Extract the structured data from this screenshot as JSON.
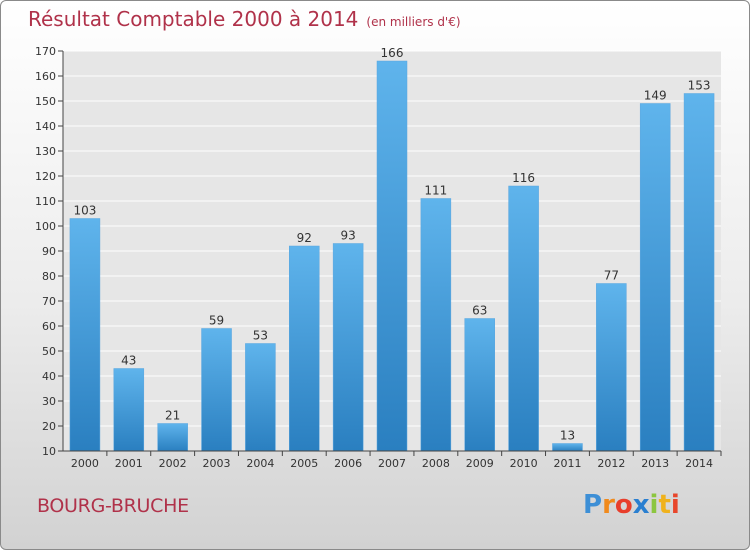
{
  "title": {
    "main": "Résultat Comptable 2000 à 2014",
    "unit": "(en milliers d'€)"
  },
  "location": "BOURG-BRUCHE",
  "logo": {
    "letters": [
      "P",
      "r",
      "o",
      "x",
      "i",
      "t",
      "i"
    ]
  },
  "colors": {
    "title": "#b0324a",
    "bar_light": "#5fb4ec",
    "bar_dark": "#2a7fc0"
  },
  "chart_data": {
    "type": "bar",
    "categories": [
      "2000",
      "2001",
      "2002",
      "2003",
      "2004",
      "2005",
      "2006",
      "2007",
      "2008",
      "2009",
      "2010",
      "2011",
      "2012",
      "2013",
      "2014"
    ],
    "values": [
      103,
      43,
      21,
      59,
      53,
      92,
      93,
      166,
      111,
      63,
      116,
      13,
      77,
      149,
      153
    ],
    "data_labels": [
      "103",
      "43",
      "21",
      "59",
      "53",
      "92",
      "93",
      "166",
      "111",
      "63",
      "116",
      "13",
      "77",
      "149",
      "153"
    ],
    "title": "Résultat Comptable 2000 à 2014",
    "subtitle": "(en milliers d'€)",
    "xlabel": "",
    "ylabel": "",
    "ylim": [
      10,
      170
    ],
    "yticks": [
      10,
      20,
      30,
      40,
      50,
      60,
      70,
      80,
      90,
      100,
      110,
      120,
      130,
      140,
      150,
      160,
      170
    ],
    "grid": true,
    "legend": "none"
  }
}
